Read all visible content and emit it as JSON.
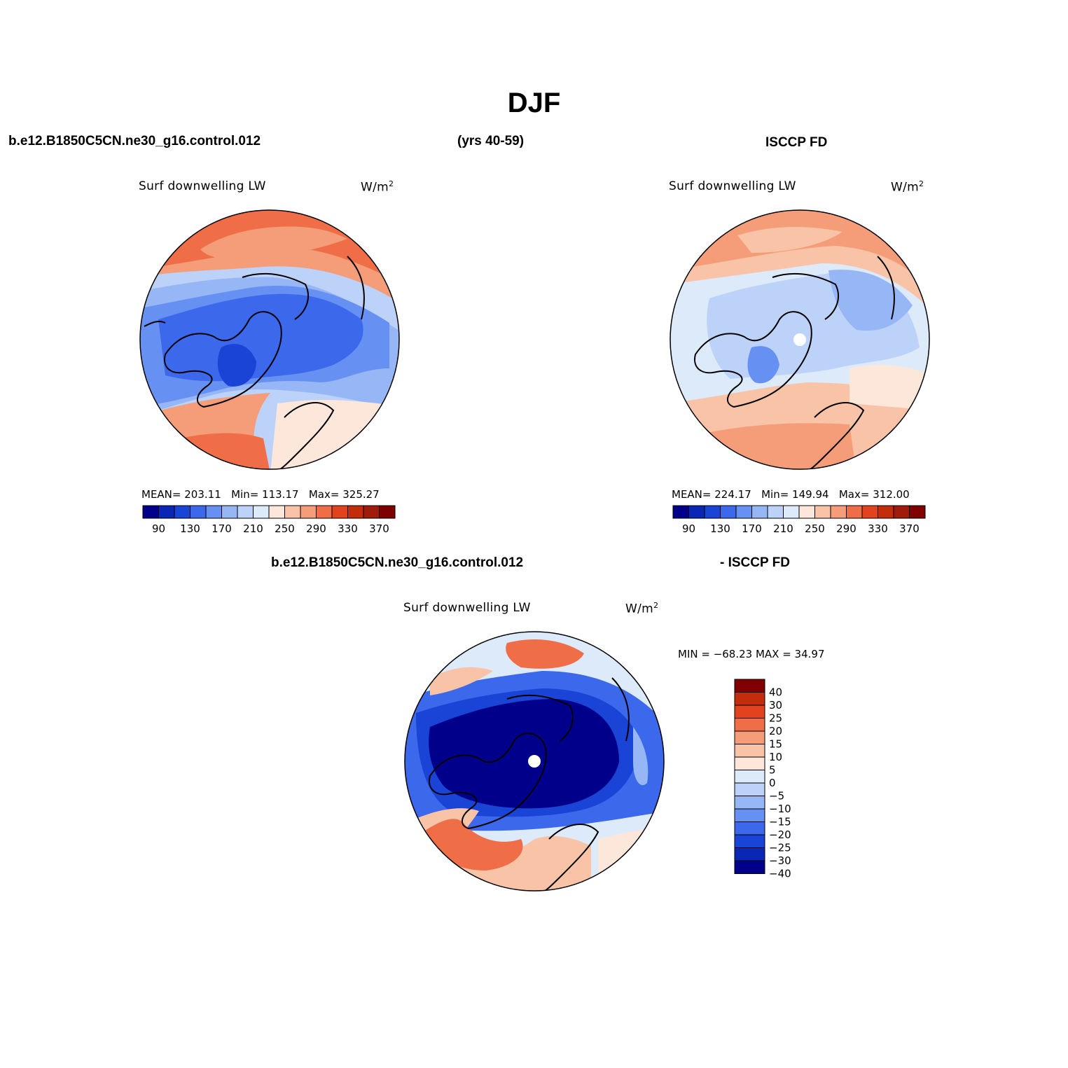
{
  "title": "DJF",
  "top_left_header": "b.e12.B1850C5CN.ne30_g16.control.012",
  "top_years": "(yrs 40-59)",
  "top_right_header": "ISCCP FD",
  "bottom_header_left": "b.e12.B1850C5CN.ne30_g16.control.012",
  "bottom_header_right": "- ISCCP FD",
  "units_base": "W/m",
  "units_exp": "2",
  "colors": {
    "abs_scale": [
      "#00008b",
      "#0a26b4",
      "#1a44d6",
      "#3c68ec",
      "#6790f3",
      "#96b6f6",
      "#bcd2f8",
      "#dceafa",
      "#fde6da",
      "#f9c3a8",
      "#f59c78",
      "#ef6e47",
      "#e2431e",
      "#c42d0c",
      "#a01b0a",
      "#800000"
    ],
    "diff_scale": [
      "#00008b",
      "#0a26b4",
      "#1a44d6",
      "#3c68ec",
      "#6790f3",
      "#96b6f6",
      "#bcd2f8",
      "#dceafa",
      "#fde6da",
      "#f9c3a8",
      "#f59c78",
      "#ef6e47",
      "#e2431e",
      "#c42d0c",
      "#800000"
    ]
  },
  "panels": {
    "model": {
      "plot_title": "Surf downwelling LW",
      "mean_label": "MEAN=",
      "mean": "203.11",
      "min_label": "Min=",
      "min": "113.17",
      "max_label": "Max=",
      "max": "325.27"
    },
    "obs": {
      "plot_title": "Surf downwelling LW",
      "mean_label": "MEAN=",
      "mean": "224.17",
      "min_label": "Min=",
      "min": "149.94",
      "max_label": "Max=",
      "max": "312.00"
    },
    "diff": {
      "plot_title": "Surf downwelling LW",
      "minmax": "MIN = −68.23 MAX =  34.97"
    }
  },
  "abs_ticks": [
    "90",
    "130",
    "170",
    "210",
    "250",
    "290",
    "330",
    "370"
  ],
  "diff_ticks": [
    "40",
    "30",
    "25",
    "20",
    "15",
    "10",
    "5",
    "0",
    "−5",
    "−10",
    "−15",
    "−20",
    "−25",
    "−30",
    "−40"
  ]
}
